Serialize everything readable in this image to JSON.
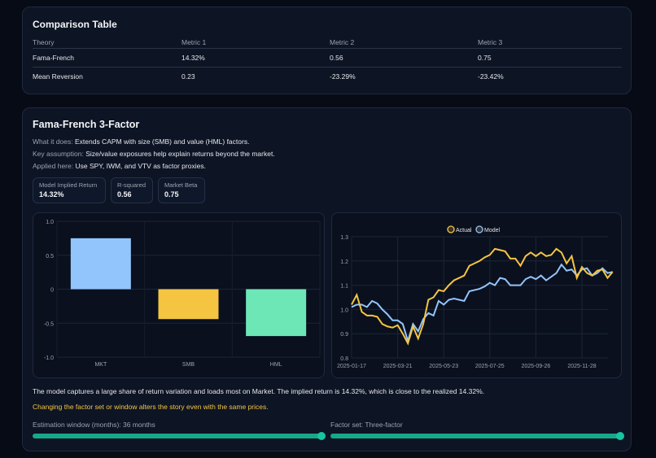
{
  "comparison": {
    "title": "Comparison Table",
    "headers": [
      "Theory",
      "Metric 1",
      "Metric 2",
      "Metric 3"
    ],
    "rows": [
      [
        "Fama-French",
        "14.32%",
        "0.56",
        "0.75"
      ],
      [
        "Mean Reversion",
        "0.23",
        "-23.29%",
        "-23.42%"
      ]
    ]
  },
  "model": {
    "title": "Fama-French 3-Factor",
    "what_label": "What it does:",
    "what": "Extends CAPM with size (SMB) and value (HML) factors.",
    "key_label": "Key assumption:",
    "key": "Size/value exposures help explain returns beyond the market.",
    "applied_label": "Applied here:",
    "applied": "Use SPY, IWM, and VTV as factor proxies.",
    "stats": [
      {
        "label": "Model Implied Return",
        "value": "14.32%"
      },
      {
        "label": "R-squared",
        "value": "0.56"
      },
      {
        "label": "Market Beta",
        "value": "0.75"
      }
    ],
    "summary": "The model captures a large share of return variation and loads most on Market. The implied return is 14.32%, which is close to the realized 14.32%.",
    "warning": "Changing the factor set or window alters the story even with the same prices.",
    "window_label": "Estimation window (months): 36 months",
    "window_fraction": 1.0,
    "factor_label": "Factor set: Three-factor",
    "factor_fraction": 1.0
  },
  "colors": {
    "accent": "#16a889",
    "warning": "#f5c542",
    "actual": "#f5c542",
    "model": "#93c5fd",
    "mkt": "#93c5fd",
    "smb": "#f5c542",
    "hml": "#6ee7b7"
  },
  "chart_data": [
    {
      "type": "bar",
      "categories": [
        "MKT",
        "SMB",
        "HML"
      ],
      "values": [
        0.75,
        -0.44,
        -0.69
      ],
      "ylim": [
        -1.0,
        1.0
      ],
      "yticks": [
        "1.0",
        "0.5",
        "0",
        "-0.5",
        "-1.0"
      ],
      "grid": true
    },
    {
      "type": "line",
      "legend": [
        "Actual",
        "Model"
      ],
      "legend_placement": "top",
      "ylim": [
        0.8,
        1.3
      ],
      "yticks": [
        "1.3",
        "1.2",
        "1.1",
        "1.0",
        "0.9",
        "0.8"
      ],
      "grid": true,
      "xticks": [
        "2025-01-17",
        "2025-03-21",
        "2025-05-23",
        "2025-07-25",
        "2025-09-26",
        "2025-11-28"
      ],
      "x": [
        "2025-01-17",
        "2025-01-24",
        "2025-01-31",
        "2025-02-07",
        "2025-02-14",
        "2025-02-21",
        "2025-02-28",
        "2025-03-07",
        "2025-03-14",
        "2025-03-21",
        "2025-03-28",
        "2025-04-04",
        "2025-04-11",
        "2025-04-18",
        "2025-04-25",
        "2025-05-02",
        "2025-05-09",
        "2025-05-16",
        "2025-05-23",
        "2025-05-30",
        "2025-06-06",
        "2025-06-13",
        "2025-06-20",
        "2025-06-27",
        "2025-07-04",
        "2025-07-11",
        "2025-07-18",
        "2025-07-25",
        "2025-08-01",
        "2025-08-08",
        "2025-08-15",
        "2025-08-22",
        "2025-08-29",
        "2025-09-05",
        "2025-09-12",
        "2025-09-19",
        "2025-09-26",
        "2025-10-03",
        "2025-10-10",
        "2025-10-17",
        "2025-10-24",
        "2025-10-31",
        "2025-11-07",
        "2025-11-14",
        "2025-11-21",
        "2025-11-28",
        "2025-12-05",
        "2025-12-12",
        "2025-12-19",
        "2025-12-26",
        "2026-01-02",
        "2026-01-09"
      ],
      "series": [
        {
          "name": "Actual",
          "values": [
            1.02,
            1.06,
            0.99,
            0.975,
            0.975,
            0.97,
            0.94,
            0.93,
            0.925,
            0.935,
            0.9,
            0.86,
            0.93,
            0.88,
            0.94,
            1.04,
            1.05,
            1.08,
            1.075,
            1.1,
            1.12,
            1.13,
            1.14,
            1.18,
            1.19,
            1.2,
            1.215,
            1.225,
            1.25,
            1.245,
            1.24,
            1.21,
            1.21,
            1.18,
            1.22,
            1.235,
            1.22,
            1.235,
            1.22,
            1.225,
            1.25,
            1.235,
            1.19,
            1.22,
            1.13,
            1.175,
            1.15,
            1.14,
            1.16,
            1.165,
            1.13,
            1.155
          ]
        },
        {
          "name": "Model",
          "values": [
            1.01,
            1.02,
            1.02,
            1.01,
            1.035,
            1.025,
            1.0,
            0.98,
            0.955,
            0.955,
            0.94,
            0.87,
            0.94,
            0.91,
            0.96,
            0.985,
            0.975,
            1.035,
            1.02,
            1.04,
            1.045,
            1.04,
            1.035,
            1.075,
            1.08,
            1.085,
            1.095,
            1.11,
            1.1,
            1.13,
            1.125,
            1.1,
            1.1,
            1.1,
            1.125,
            1.135,
            1.125,
            1.14,
            1.12,
            1.135,
            1.15,
            1.185,
            1.16,
            1.165,
            1.14,
            1.165,
            1.17,
            1.14,
            1.15,
            1.17,
            1.15,
            1.155
          ]
        }
      ]
    }
  ]
}
